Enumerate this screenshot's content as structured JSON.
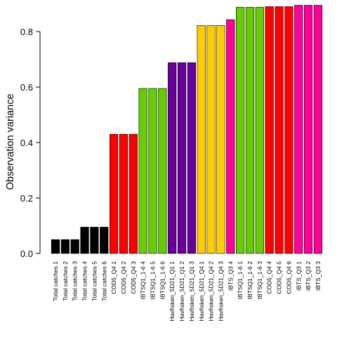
{
  "chart_data": {
    "type": "bar",
    "title": "",
    "xlabel": "",
    "ylabel": "Observation variance",
    "ylim": [
      0,
      0.9
    ],
    "yticks": [
      0.0,
      0.2,
      0.4,
      0.6,
      0.8
    ],
    "ytick_labels": [
      "0.0",
      "0.2",
      "0.4",
      "0.6",
      "0.8"
    ],
    "grid": false,
    "legend": "none",
    "categories": [
      "Total catches 1",
      "Total catches 2",
      "Total catches 3",
      "Total catches 4",
      "Total catches 5",
      "Total catches 6",
      "COD5_Q4 1",
      "COD5_Q4 2",
      "COD5_Q4 3",
      "IBTSQ1_1-6 4",
      "IBTSQ1_1-6 5",
      "IBTSQ1_1-6 6",
      "Havfisken_5D21_Q1 1",
      "Havfisken_5D21_Q1 2",
      "Havfisken_5D21_Q1 3",
      "Havfisken_5D21_Q4 1",
      "Havfisken_5D21_Q4 2",
      "Havfisken_5D21_Q4 3",
      "IBTS_Q3 4",
      "IBTSQ1_1-6 1",
      "IBTSQ1_1-6 2",
      "IBTSQ1_1-6 3",
      "COD5_Q4 4",
      "COD5_Q4 5",
      "COD5_Q4 6",
      "IBTS_Q3 1",
      "IBTS_Q3 2",
      "IBTS_Q3 3"
    ],
    "values": [
      0.05,
      0.05,
      0.05,
      0.095,
      0.095,
      0.095,
      0.43,
      0.43,
      0.43,
      0.595,
      0.595,
      0.595,
      0.688,
      0.688,
      0.688,
      0.822,
      0.822,
      0.822,
      0.843,
      0.888,
      0.888,
      0.888,
      0.89,
      0.89,
      0.89,
      0.895,
      0.895,
      0.895
    ],
    "colors": [
      "#000000",
      "#000000",
      "#000000",
      "#000000",
      "#000000",
      "#000000",
      "#ff0000",
      "#ff0000",
      "#ff0000",
      "#66cc00",
      "#66cc00",
      "#66cc00",
      "#660099",
      "#660099",
      "#660099",
      "#ffcc00",
      "#ffcc00",
      "#ffcc00",
      "#ff0099",
      "#66cc00",
      "#66cc00",
      "#66cc00",
      "#ff0000",
      "#ff0000",
      "#ff0000",
      "#ff0099",
      "#ff0099",
      "#ff0099"
    ]
  }
}
